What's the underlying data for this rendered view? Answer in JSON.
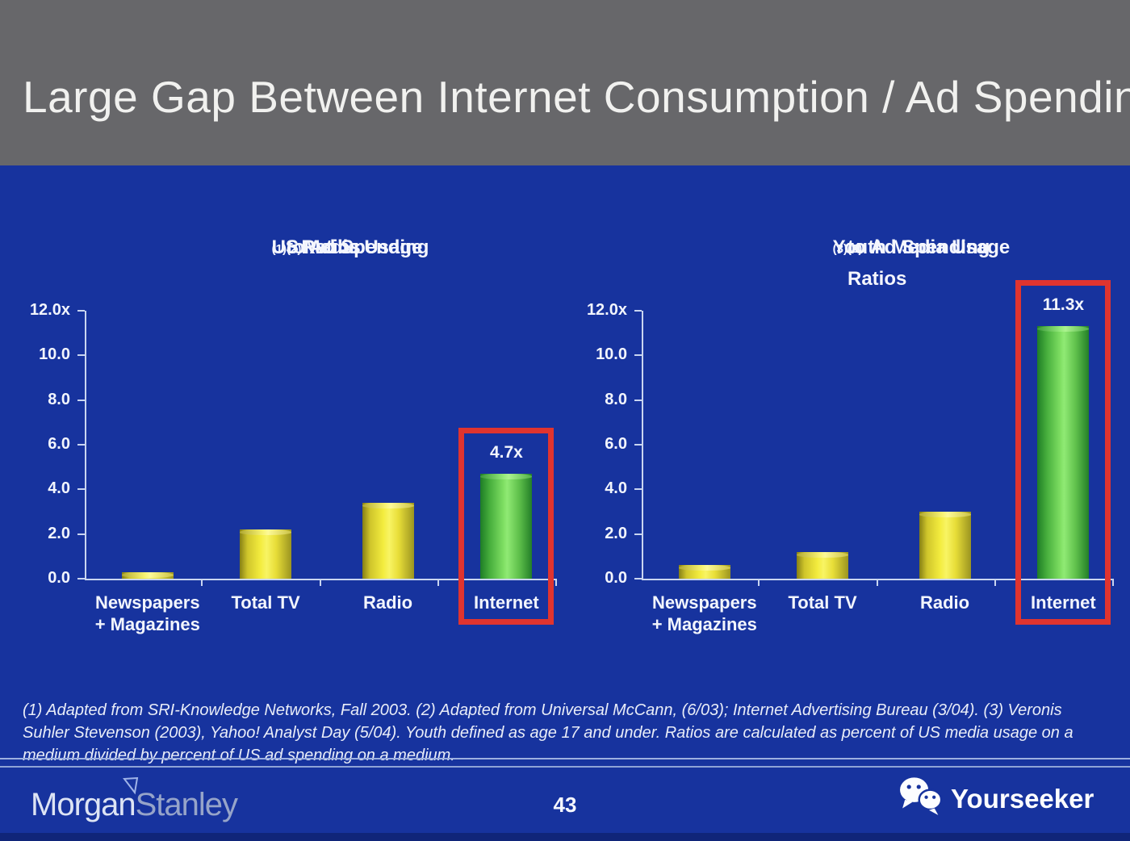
{
  "header": {
    "title": "Large Gap Between Internet Consumption / Ad Spending"
  },
  "colors": {
    "background_blue": "#17339e",
    "header_gray": "#67676a",
    "bar_yellow": "#f3ec3e",
    "bar_green": "#7fdf63",
    "highlight_red": "#e0342f",
    "axis_line": "#c9d5f0"
  },
  "chart_data": [
    {
      "type": "bar",
      "title": "US Media Usage (1) to Ad Spending (2) Ratios",
      "title_lines": [
        [
          {
            "t": "US Media Usage "
          },
          {
            "sup": "(1)"
          },
          {
            "t": " to Ad Spending "
          },
          {
            "sup": "(2)"
          },
          {
            "t": " Ratios"
          }
        ]
      ],
      "categories": [
        [
          "Newspapers",
          "+ Magazines"
        ],
        [
          "Total TV"
        ],
        [
          "Radio"
        ],
        [
          "Internet"
        ]
      ],
      "values": [
        0.3,
        2.2,
        3.4,
        4.7
      ],
      "bar_colors": [
        "yellow",
        "yellow",
        "yellow",
        "green"
      ],
      "bar_value_labels": [
        null,
        null,
        null,
        "4.7x"
      ],
      "y_ticks": [
        {
          "v": 12,
          "label": "12.0x"
        },
        {
          "v": 10,
          "label": "10.0"
        },
        {
          "v": 8,
          "label": "8.0"
        },
        {
          "v": 6,
          "label": "6.0"
        },
        {
          "v": 4,
          "label": "4.0"
        },
        {
          "v": 2,
          "label": "2.0"
        },
        {
          "v": 0,
          "label": "0.0"
        }
      ],
      "ylim": [
        0,
        12
      ],
      "grid": false,
      "highlight_index": 3
    },
    {
      "type": "bar",
      "title": "Youth Media Usage (3) to Ad Spending (2) Ratios",
      "title_lines": [
        [
          {
            "t": "Youth Media Usage "
          },
          {
            "sup": "(3)"
          },
          {
            "t": " to Ad Spending "
          },
          {
            "sup": "(2)"
          }
        ],
        [
          {
            "t": "Ratios"
          }
        ]
      ],
      "categories": [
        [
          "Newspapers",
          "+ Magazines"
        ],
        [
          "Total TV"
        ],
        [
          "Radio"
        ],
        [
          "Internet"
        ]
      ],
      "values": [
        0.6,
        1.2,
        3.0,
        11.3
      ],
      "bar_colors": [
        "yellow",
        "yellow",
        "yellow",
        "green"
      ],
      "bar_value_labels": [
        null,
        null,
        null,
        "11.3x"
      ],
      "y_ticks": [
        {
          "v": 12,
          "label": "12.0x"
        },
        {
          "v": 10,
          "label": "10.0"
        },
        {
          "v": 8,
          "label": "8.0"
        },
        {
          "v": 6,
          "label": "6.0"
        },
        {
          "v": 4,
          "label": "4.0"
        },
        {
          "v": 2,
          "label": "2.0"
        },
        {
          "v": 0,
          "label": "0.0"
        }
      ],
      "ylim": [
        0,
        12
      ],
      "grid": false,
      "highlight_index": 3
    }
  ],
  "footnote": {
    "text": "(1) Adapted from SRI-Knowledge Networks, Fall 2003.  (2) Adapted from Universal McCann, (6/03); Internet Advertising Bureau (3/04). (3) Veronis Suhler Stevenson (2003), Yahoo! Analyst Day (5/04).  Youth defined as age 17 and under.  Ratios are calculated as percent of US media usage on a medium divided by percent of US ad spending on a medium."
  },
  "footer": {
    "brand_part1": "Morgan",
    "brand_part2": "Stanley",
    "page_number": "43",
    "watermark_label": "Yourseeker"
  }
}
